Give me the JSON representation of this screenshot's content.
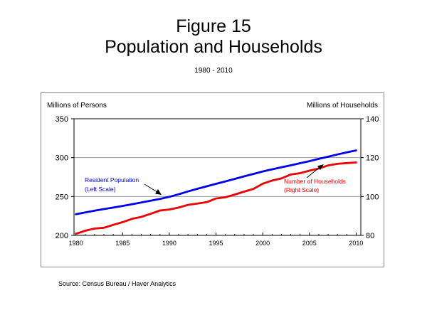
{
  "figure": {
    "title_line1": "Figure 15",
    "title_line2": "Population and Households",
    "subtitle": "1980 - 2010",
    "source": "Source:  Census Bureau / Haver Analytics"
  },
  "chart_data": {
    "type": "line",
    "x": [
      1980,
      1981,
      1982,
      1983,
      1984,
      1985,
      1986,
      1987,
      1988,
      1989,
      1990,
      1991,
      1992,
      1993,
      1994,
      1995,
      1996,
      1997,
      1998,
      1999,
      2000,
      2001,
      2002,
      2003,
      2004,
      2005,
      2006,
      2007,
      2008,
      2009,
      2010
    ],
    "xlim": [
      1979.8,
      2010.5
    ],
    "xticks": [
      1980,
      1985,
      1990,
      1995,
      2000,
      2005,
      2010
    ],
    "left_axis": {
      "label": "Millions of Persons",
      "range": [
        200,
        350
      ],
      "ticks": [
        200,
        250,
        300,
        350
      ]
    },
    "right_axis": {
      "label": "Millions of Households",
      "range": [
        80,
        140
      ],
      "ticks": [
        80,
        100,
        120,
        140
      ]
    },
    "gridlines": [
      250,
      300
    ],
    "series": [
      {
        "name": "Resident Population",
        "annotation": [
          "Resident Population",
          "(Left Scale)"
        ],
        "axis": "left",
        "color": "#0000ee",
        "values": [
          227.2,
          229.5,
          231.7,
          233.8,
          235.8,
          237.9,
          240.1,
          242.3,
          244.5,
          246.8,
          249.6,
          252.9,
          256.5,
          259.9,
          263.1,
          266.3,
          269.4,
          272.6,
          275.9,
          279.0,
          282.2,
          285.0,
          287.6,
          290.1,
          292.8,
          295.5,
          298.4,
          301.2,
          304.1,
          306.8,
          309.3
        ]
      },
      {
        "name": "Number of Households",
        "annotation": [
          "Number of Households",
          "(Right Scale)"
        ],
        "axis": "right",
        "color": "#ee0000",
        "values": [
          80.8,
          82.4,
          83.5,
          83.9,
          85.4,
          86.8,
          88.5,
          89.5,
          91.1,
          92.8,
          93.3,
          94.3,
          95.7,
          96.4,
          97.1,
          99.0,
          99.6,
          101.0,
          102.5,
          103.9,
          106.6,
          108.2,
          109.3,
          111.3,
          112.0,
          113.3,
          114.4,
          116.0,
          116.8,
          117.2,
          117.5
        ]
      }
    ]
  }
}
